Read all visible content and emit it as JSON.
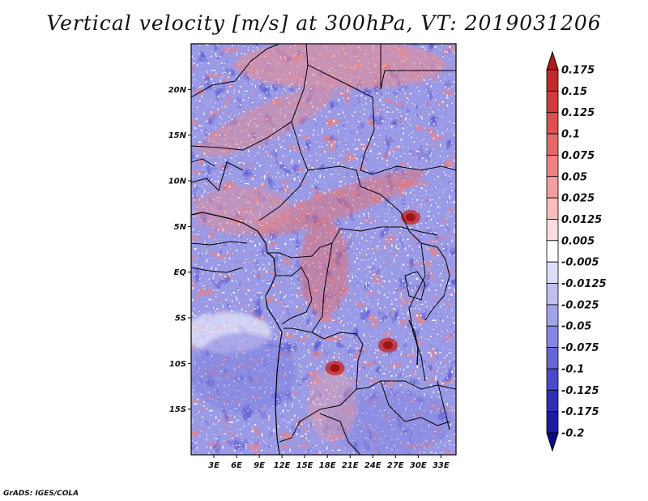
{
  "chart_data": {
    "type": "heatmap",
    "title": "Vertical velocity [m/s] at 300hPa, VT: 2019031206",
    "variable": "Vertical velocity",
    "units": "m/s",
    "level": "300hPa",
    "valid_time": "2019031206",
    "x_axis": {
      "label": "",
      "range": [
        0,
        35
      ],
      "ticks": [
        3,
        6,
        9,
        12,
        15,
        18,
        21,
        24,
        27,
        30,
        33
      ],
      "tick_labels": [
        "3E",
        "6E",
        "9E",
        "12E",
        "15E",
        "18E",
        "21E",
        "24E",
        "27E",
        "30E",
        "33E"
      ]
    },
    "y_axis": {
      "label": "",
      "range": [
        -20,
        25
      ],
      "ticks": [
        20,
        15,
        10,
        5,
        0,
        -5,
        -10,
        -15
      ],
      "tick_labels": [
        "20N",
        "15N",
        "10N",
        "5N",
        "EQ",
        "5S",
        "10S",
        "15S"
      ]
    },
    "colorbar": {
      "levels": [
        0.175,
        0.15,
        0.125,
        0.1,
        0.075,
        0.05,
        0.025,
        0.0125,
        0.005,
        -0.005,
        -0.0125,
        -0.025,
        -0.05,
        -0.075,
        -0.1,
        -0.125,
        -0.175,
        -0.2
      ],
      "labels": [
        "0.175",
        "0.15",
        "0.125",
        "0.1",
        "0.075",
        "0.05",
        "0.025",
        "0.0125",
        "0.005",
        "-0.005",
        "-0.0125",
        "-0.025",
        "-0.05",
        "-0.075",
        "-0.1",
        "-0.125",
        "-0.175",
        "-0.2"
      ],
      "colors": [
        "#b01a1a",
        "#c22a2a",
        "#d03a3a",
        "#dc5050",
        "#e56868",
        "#ec8282",
        "#f29e9e",
        "#f7bcbc",
        "#fbdddd",
        "#ffffff",
        "#dcdcf8",
        "#bfbff2",
        "#a3a3ec",
        "#8585e2",
        "#6666d6",
        "#4a4ac8",
        "#3030b5",
        "#1c1ca0",
        "#0c0c86"
      ],
      "extend": "both"
    },
    "features": [
      {
        "type": "updraft-max",
        "lon": 19,
        "lat": -10.5,
        "value": 0.175
      },
      {
        "type": "updraft-max",
        "lon": 26,
        "lat": -8,
        "value": 0.15
      },
      {
        "type": "updraft-max",
        "lon": 29,
        "lat": 6,
        "value": 0.1
      }
    ]
  },
  "footer": "GrADS: IGES/COLA"
}
